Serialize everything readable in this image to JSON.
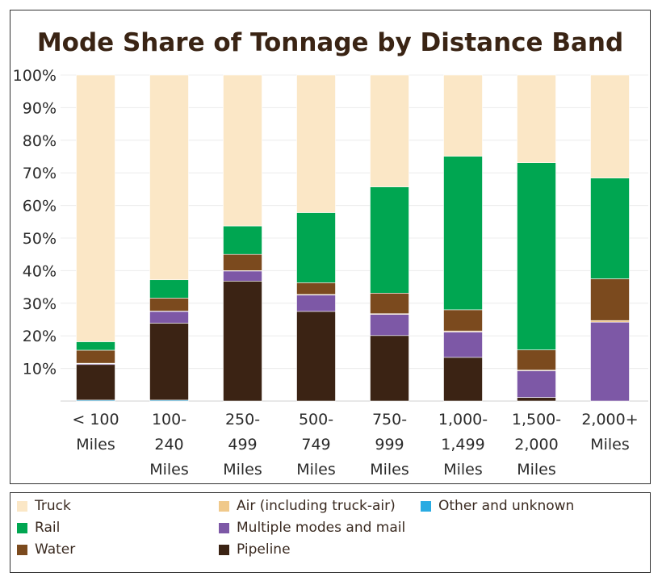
{
  "chart_data": {
    "type": "bar",
    "stacked": true,
    "title": "Mode Share of Tonnage by Distance Band",
    "xlabel": "",
    "ylabel": "",
    "ylim": [
      0,
      100
    ],
    "y_ticks": [
      "10%",
      "20%",
      "30%",
      "40%",
      "50%",
      "60%",
      "70%",
      "80%",
      "90%",
      "100%"
    ],
    "categories": [
      [
        "< 100",
        "Miles"
      ],
      [
        "100-",
        "240",
        "Miles"
      ],
      [
        "250-",
        "499",
        "Miles"
      ],
      [
        "500-",
        "749",
        "Miles"
      ],
      [
        "750-",
        "999",
        "Miles"
      ],
      [
        "1,000-",
        "1,499",
        "Miles"
      ],
      [
        "1,500-",
        "2,000",
        "Miles"
      ],
      [
        "2,000+",
        "Miles"
      ]
    ],
    "series": [
      {
        "name": "Other and unknown",
        "color": "#29abe2",
        "values": [
          0.3,
          0.3,
          0,
          0,
          0,
          0,
          0,
          0
        ]
      },
      {
        "name": "Pipeline",
        "color": "#3b2314",
        "values": [
          10.9,
          23.6,
          36.8,
          27.5,
          20.1,
          13.4,
          1.1,
          0
        ]
      },
      {
        "name": "Multiple modes and mail",
        "color": "#7d58a6",
        "values": [
          0.3,
          3.6,
          3.1,
          5.0,
          6.5,
          7.8,
          8.2,
          24.2
        ]
      },
      {
        "name": "Air (including truck-air)",
        "color": "#f0c98b",
        "values": [
          0.1,
          0.1,
          0.1,
          0.2,
          0.2,
          0.3,
          0.2,
          0.5
        ]
      },
      {
        "name": "Water",
        "color": "#7b4a1e",
        "values": [
          4.0,
          4.0,
          5.0,
          3.6,
          6.3,
          6.5,
          6.2,
          12.8
        ]
      },
      {
        "name": "Rail",
        "color": "#00a651",
        "values": [
          2.6,
          5.6,
          8.7,
          21.5,
          32.6,
          47.1,
          57.4,
          30.9
        ]
      },
      {
        "name": "Truck",
        "color": "#fbe7c6",
        "values": [
          81.8,
          62.8,
          46.3,
          42.2,
          34.3,
          24.9,
          26.9,
          31.6
        ]
      }
    ],
    "grid": true,
    "legend_position": "bottom"
  },
  "legend": [
    {
      "label": "Truck",
      "color": "#fbe7c6"
    },
    {
      "label": "Air (including truck-air)",
      "color": "#f0c98b"
    },
    {
      "label": "Other and unknown",
      "color": "#29abe2"
    },
    {
      "label": "Rail",
      "color": "#00a651"
    },
    {
      "label": "Multiple modes and mail",
      "color": "#7d58a6"
    },
    {
      "label": "Water",
      "color": "#7b4a1e"
    },
    {
      "label": "Pipeline",
      "color": "#3b2314"
    }
  ]
}
